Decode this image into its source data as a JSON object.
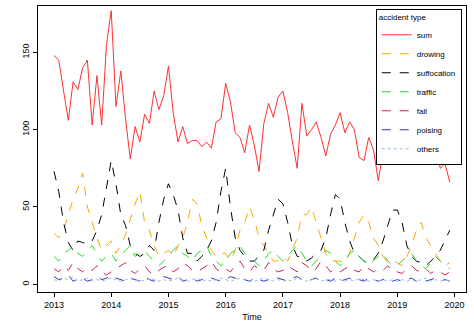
{
  "chart_data": {
    "type": "line",
    "x_label": "Time",
    "legend_title": "accident type",
    "legend": "top right",
    "grid": false,
    "xlim": [
      2012.72,
      2020.2
    ],
    "xticks": [
      2013,
      2014,
      2015,
      2016,
      2017,
      2018,
      2019,
      2020
    ],
    "ylim": [
      -5,
      180
    ],
    "yticks": [
      0,
      50,
      100,
      150
    ],
    "x": [
      2013,
      2013.083,
      2013.167,
      2013.25,
      2013.333,
      2013.417,
      2013.5,
      2013.583,
      2013.667,
      2013.75,
      2013.833,
      2013.917,
      2014,
      2014.083,
      2014.167,
      2014.25,
      2014.333,
      2014.417,
      2014.5,
      2014.583,
      2014.667,
      2014.75,
      2014.833,
      2014.917,
      2015,
      2015.083,
      2015.167,
      2015.25,
      2015.333,
      2015.417,
      2015.5,
      2015.583,
      2015.667,
      2015.75,
      2015.833,
      2015.917,
      2016,
      2016.083,
      2016.167,
      2016.25,
      2016.333,
      2016.417,
      2016.5,
      2016.583,
      2016.667,
      2016.75,
      2016.833,
      2016.917,
      2017,
      2017.083,
      2017.167,
      2017.25,
      2017.333,
      2017.417,
      2017.5,
      2017.583,
      2017.667,
      2017.75,
      2017.833,
      2017.917,
      2018,
      2018.083,
      2018.167,
      2018.25,
      2018.333,
      2018.417,
      2018.5,
      2018.583,
      2018.667,
      2018.75,
      2018.833,
      2018.917,
      2019,
      2019.083,
      2019.167,
      2019.25,
      2019.333,
      2019.417,
      2019.5,
      2019.583,
      2019.667,
      2019.75,
      2019.833,
      2019.917
    ],
    "series": [
      {
        "name": "sum",
        "color": "#ff3030",
        "line_style": "solid",
        "values": [
          148,
          145,
          125,
          106,
          131,
          126,
          140,
          145,
          103,
          135,
          103,
          155,
          177,
          115,
          138,
          107,
          81,
          102,
          92,
          110,
          104,
          125,
          113,
          122,
          141,
          111,
          92,
          102,
          91,
          93,
          93,
          89,
          92,
          88,
          105,
          107,
          130,
          118,
          98,
          95,
          85,
          103,
          90,
          73,
          104,
          117,
          108,
          121,
          125,
          111,
          92,
          75,
          117,
          96,
          100,
          105,
          95,
          83,
          97,
          103,
          111,
          98,
          105,
          100,
          82,
          80,
          95,
          87,
          67,
          86,
          87,
          100,
          85,
          95,
          83,
          108,
          101,
          99,
          81,
          80,
          92,
          75,
          78,
          66
        ]
      },
      {
        "name": "drowing",
        "color": "#ffa500",
        "line_style": "dash",
        "values": [
          33,
          30,
          35,
          45,
          55,
          62,
          72,
          50,
          40,
          30,
          22,
          25,
          28,
          20,
          25,
          32,
          42,
          52,
          60,
          40,
          35,
          25,
          18,
          20,
          22,
          18,
          25,
          30,
          40,
          55,
          52,
          38,
          30,
          22,
          18,
          20,
          20,
          15,
          22,
          35,
          40,
          50,
          42,
          30,
          25,
          20,
          15,
          15,
          18,
          15,
          22,
          30,
          45,
          45,
          50,
          40,
          30,
          20,
          15,
          15,
          15,
          14,
          20,
          30,
          40,
          45,
          40,
          30,
          25,
          18,
          14,
          15,
          14,
          12,
          18,
          25,
          35,
          40,
          30,
          25,
          20,
          15,
          12,
          14
        ]
      },
      {
        "name": "suffocation",
        "color": "#000000",
        "line_style": "dash",
        "values": [
          73,
          60,
          40,
          27,
          22,
          28,
          27,
          26,
          28,
          35,
          45,
          62,
          80,
          65,
          45,
          38,
          25,
          20,
          18,
          20,
          25,
          22,
          40,
          55,
          65,
          58,
          48,
          30,
          20,
          20,
          15,
          18,
          22,
          28,
          40,
          60,
          75,
          50,
          30,
          22,
          18,
          15,
          15,
          18,
          22,
          35,
          45,
          55,
          52,
          40,
          25,
          18,
          18,
          15,
          17,
          20,
          22,
          30,
          45,
          58,
          55,
          40,
          28,
          20,
          18,
          15,
          14,
          16,
          20,
          28,
          38,
          48,
          48,
          40,
          25,
          18,
          15,
          14,
          12,
          15,
          18,
          22,
          28,
          35
        ]
      },
      {
        "name": "traffic",
        "color": "#22dd22",
        "line_style": "dash",
        "values": [
          18,
          15,
          20,
          22,
          25,
          20,
          18,
          22,
          25,
          20,
          15,
          18,
          20,
          15,
          18,
          22,
          25,
          18,
          20,
          22,
          18,
          15,
          12,
          15,
          18,
          22,
          25,
          20,
          18,
          15,
          20,
          22,
          25,
          18,
          15,
          12,
          15,
          20,
          22,
          25,
          20,
          18,
          15,
          12,
          15,
          20,
          22,
          18,
          15,
          18,
          22,
          25,
          20,
          15,
          12,
          15,
          18,
          22,
          20,
          15,
          12,
          15,
          20,
          22,
          18,
          15,
          12,
          15,
          18,
          20,
          15,
          12,
          12,
          15,
          18,
          20,
          15,
          12,
          10,
          14,
          18,
          15,
          12,
          10
        ]
      },
      {
        "name": "fall",
        "color": "#cc2255",
        "line_style": "dash",
        "values": [
          10,
          8,
          12,
          9,
          14,
          10,
          8,
          11,
          9,
          12,
          8,
          6,
          8,
          10,
          12,
          14,
          9,
          7,
          10,
          12,
          8,
          6,
          9,
          11,
          12,
          8,
          10,
          14,
          12,
          9,
          8,
          10,
          12,
          15,
          10,
          8,
          10,
          8,
          12,
          15,
          10,
          8,
          12,
          10,
          9,
          14,
          10,
          8,
          9,
          12,
          10,
          8,
          14,
          12,
          8,
          10,
          15,
          12,
          8,
          10,
          8,
          10,
          12,
          9,
          8,
          12,
          10,
          8,
          10,
          9,
          12,
          8,
          8,
          7,
          10,
          12,
          9,
          8,
          10,
          7,
          9,
          8,
          6,
          8
        ]
      },
      {
        "name": "poising",
        "color": "#3333cc",
        "line_style": "dash",
        "values": [
          5,
          3,
          4,
          6,
          2,
          3,
          4,
          2,
          3,
          5,
          3,
          4,
          6,
          4,
          3,
          2,
          4,
          3,
          2,
          5,
          3,
          2,
          4,
          5,
          4,
          3,
          5,
          2,
          3,
          4,
          2,
          3,
          5,
          4,
          3,
          2,
          3,
          5,
          4,
          2,
          3,
          2,
          4,
          3,
          2,
          3,
          5,
          4,
          3,
          2,
          4,
          5,
          3,
          2,
          3,
          4,
          2,
          3,
          2,
          4,
          2,
          3,
          4,
          2,
          3,
          2,
          4,
          3,
          2,
          3,
          4,
          2,
          3,
          2,
          3,
          4,
          2,
          3,
          2,
          3,
          4,
          2,
          3,
          2
        ]
      },
      {
        "name": "others",
        "color": "#99bbdd",
        "line_style": "dot",
        "values": [
          3,
          2,
          4,
          3,
          5,
          2,
          3,
          4,
          2,
          3,
          2,
          3,
          4,
          3,
          2,
          3,
          4,
          2,
          3,
          2,
          4,
          3,
          2,
          3,
          2,
          3,
          4,
          3,
          2,
          3,
          4,
          2,
          3,
          2,
          3,
          4,
          3,
          2,
          3,
          4,
          3,
          2,
          2,
          3,
          4,
          3,
          2,
          3,
          2,
          3,
          2,
          4,
          3,
          2,
          3,
          4,
          2,
          3,
          3,
          2,
          3,
          2,
          3,
          2,
          4,
          3,
          2,
          3,
          2,
          3,
          2,
          3,
          2,
          3,
          2,
          3,
          2,
          3,
          4,
          2,
          3,
          2,
          3,
          2
        ]
      }
    ]
  }
}
